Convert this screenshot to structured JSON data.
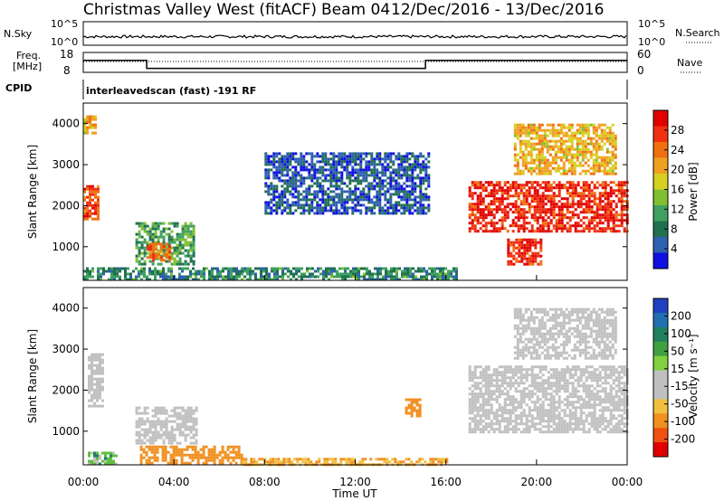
{
  "header": {
    "station": "Christmas Valley West (fitACF)",
    "beam": "Beam 04",
    "date_range": "12/Dec/2016 - 13/Dec/2016"
  },
  "top_panels": {
    "nsky_label": "N.Sky",
    "nsearch_label": "N.Search",
    "nsky_ticks": [
      "10^5",
      "10^0"
    ],
    "nsearch_ticks": [
      "10^5",
      "10^0"
    ],
    "freq_label_line1": "Freq.",
    "freq_label_line2": "[MHz]",
    "freq_ticks": [
      "18",
      "8"
    ],
    "nave_label": "Nave",
    "nave_ticks": [
      "60",
      "0"
    ],
    "cpid_label": "CPID",
    "cpid_text": "interleavedscan (fast) -191 RF"
  },
  "axes": {
    "ylabel": "Slant Range [km]",
    "yticks": [
      1000,
      2000,
      3000,
      4000
    ],
    "xlabel": "Time UT",
    "xticks": [
      "00:00",
      "04:00",
      "08:00",
      "12:00",
      "16:00",
      "20:00",
      "00:00"
    ]
  },
  "power_bar": {
    "label": "Power [dB]",
    "ticks": [
      "28",
      "24",
      "20",
      "16",
      "12",
      "8",
      "4"
    ],
    "colors": [
      "#e00000",
      "#f03010",
      "#f07010",
      "#f0a020",
      "#d8d020",
      "#80c030",
      "#40a060",
      "#207050",
      "#3060b0",
      "#1010e0"
    ]
  },
  "velocity_bar": {
    "label": "Velocity [m s⁻¹]",
    "ticks": [
      "200",
      "100",
      "50",
      "15",
      "-15",
      "-50",
      "-100",
      "-200"
    ],
    "colors": [
      "#2040c0",
      "#2070b0",
      "#208060",
      "#40a040",
      "#80d040",
      "#c0c0c0",
      "#c0c0c0",
      "#f0c040",
      "#f09020",
      "#f05010",
      "#e00000"
    ]
  },
  "chart_data": {
    "type": "heatmap",
    "title": "Christmas Valley West (fitACF) Beam 04 12/Dec/2016 - 13/Dec/2016",
    "xlabel": "Time UT",
    "ylabel": "Slant Range [km]",
    "x_range_hours": [
      0,
      24
    ],
    "y_range_km": [
      180,
      4500
    ],
    "freq_mhz_steps": [
      {
        "start_h": 0,
        "end_h": 2.8,
        "value": 14
      },
      {
        "start_h": 2.8,
        "end_h": 15.1,
        "value": 10
      },
      {
        "start_h": 15.1,
        "end_h": 24,
        "value": 14
      }
    ],
    "power_regions": [
      {
        "t0": 0.0,
        "t1": 0.6,
        "r0": 1700,
        "r1": 2500,
        "level": 26
      },
      {
        "t0": 0.0,
        "t1": 0.5,
        "r0": 3800,
        "r1": 4200,
        "level": 20
      },
      {
        "t0": 2.3,
        "t1": 4.9,
        "r0": 600,
        "r1": 1600,
        "level": 12
      },
      {
        "t0": 2.8,
        "t1": 3.8,
        "r0": 700,
        "r1": 1100,
        "level": 24
      },
      {
        "t0": 0.0,
        "t1": 16.5,
        "r0": 200,
        "r1": 500,
        "level": 10
      },
      {
        "t0": 8.0,
        "t1": 15.2,
        "r0": 1800,
        "r1": 3300,
        "level": 6
      },
      {
        "t0": 17.0,
        "t1": 24.0,
        "r0": 1400,
        "r1": 2600,
        "level": 28
      },
      {
        "t0": 18.7,
        "t1": 20.2,
        "r0": 600,
        "r1": 1200,
        "level": 28
      },
      {
        "t0": 19.0,
        "t1": 23.5,
        "r0": 2800,
        "r1": 4000,
        "level": 20
      }
    ],
    "velocity_regions": [
      {
        "t0": 0.2,
        "t1": 0.9,
        "r0": 1600,
        "r1": 2900,
        "level": 0
      },
      {
        "t0": 2.3,
        "t1": 5.0,
        "r0": 700,
        "r1": 1600,
        "level": 0
      },
      {
        "t0": 0.2,
        "t1": 1.5,
        "r0": 200,
        "r1": 500,
        "level": 20
      },
      {
        "t0": 2.5,
        "t1": 7.0,
        "r0": 250,
        "r1": 650,
        "level": -60
      },
      {
        "t0": 7.0,
        "t1": 16.0,
        "r0": 200,
        "r1": 350,
        "level": -30
      },
      {
        "t0": 14.2,
        "t1": 14.8,
        "r0": 1400,
        "r1": 1800,
        "level": -60
      },
      {
        "t0": 17.0,
        "t1": 24.0,
        "r0": 1000,
        "r1": 2600,
        "level": 0
      },
      {
        "t0": 19.0,
        "t1": 23.5,
        "r0": 2800,
        "r1": 4000,
        "level": 0
      }
    ]
  }
}
